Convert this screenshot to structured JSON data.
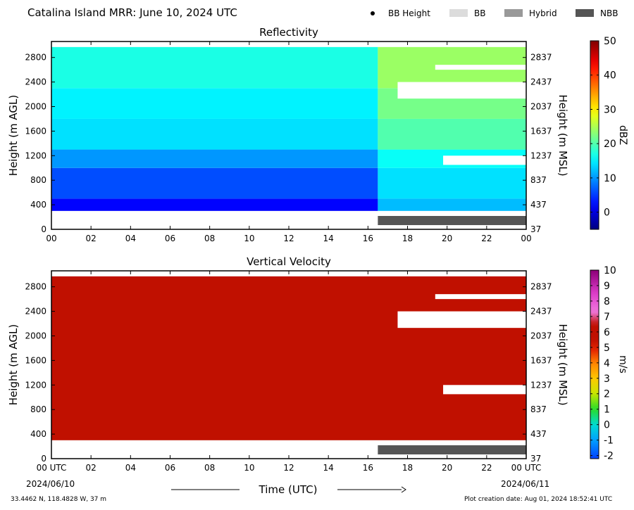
{
  "header": {
    "title": "Catalina Island MRR:  June 10, 2024 UTC"
  },
  "legend": [
    {
      "label": "BB Height",
      "kind": "dot",
      "color": "#000000"
    },
    {
      "label": "BB",
      "kind": "swatch",
      "color": "#dcdcdc"
    },
    {
      "label": "Hybrid",
      "kind": "swatch",
      "color": "#999999"
    },
    {
      "label": "NBB",
      "kind": "swatch",
      "color": "#555555"
    }
  ],
  "footer": {
    "location": "33.4462 N, 118.4828 W, 37 m",
    "created": "Plot creation date: Aug 01, 2024 18:52:41 UTC",
    "date_left": "2024/06/10",
    "date_right": "2024/06/11"
  },
  "chart_data": [
    {
      "type": "heatmap",
      "title": "Reflectivity",
      "xlabel": "",
      "ylabel": "Height (m AGL)",
      "ylabel_right": "Height (m MSL)",
      "x_ticks": [
        "00",
        "02",
        "04",
        "06",
        "08",
        "10",
        "12",
        "14",
        "16",
        "18",
        "20",
        "22",
        "00"
      ],
      "xlim": [
        0,
        24
      ],
      "y_ticks_left": [
        0,
        400,
        800,
        1200,
        1600,
        2000,
        2400,
        2800
      ],
      "y_ticks_right": [
        37,
        437,
        837,
        1237,
        1637,
        2037,
        2437,
        2837
      ],
      "ylim": [
        0,
        3060
      ],
      "colorbar": {
        "label": "dBZ",
        "range": [
          -5,
          50
        ],
        "ticks": [
          0,
          10,
          20,
          30,
          40,
          50
        ]
      },
      "data_top_m": 2970,
      "data_bottom_m": 300,
      "layers": [
        {
          "from_m": 300,
          "to_m": 500,
          "dbz_0_16": 2,
          "dbz_18_24": 12
        },
        {
          "from_m": 500,
          "to_m": 1000,
          "dbz_0_16": 6,
          "dbz_18_24": 14
        },
        {
          "from_m": 1000,
          "to_m": 1300,
          "dbz_0_16": 10,
          "dbz_18_24": 16
        },
        {
          "from_m": 1300,
          "to_m": 1800,
          "dbz_0_16": 14,
          "dbz_18_24": 20
        },
        {
          "from_m": 1800,
          "to_m": 2300,
          "dbz_0_16": 15,
          "dbz_18_24": 22
        },
        {
          "from_m": 2300,
          "to_m": 2970,
          "dbz_0_16": 17,
          "dbz_18_24": 24
        }
      ],
      "gaps": [
        {
          "from_h": 19.8,
          "to_h": 24,
          "from_m": 1050,
          "to_m": 1200
        },
        {
          "from_h": 17.5,
          "to_h": 24,
          "from_m": 2130,
          "to_m": 2400
        },
        {
          "from_h": 19.4,
          "to_h": 24,
          "from_m": 2600,
          "to_m": 2680
        }
      ],
      "nbb_period_h": [
        16.5,
        24
      ]
    },
    {
      "type": "heatmap",
      "title": "Vertical Velocity",
      "xlabel": "Time (UTC)",
      "ylabel": "Height (m AGL)",
      "ylabel_right": "Height (m MSL)",
      "x_ticks": [
        "00 UTC",
        "02",
        "04",
        "06",
        "08",
        "10",
        "12",
        "14",
        "16",
        "18",
        "20",
        "22",
        "00 UTC"
      ],
      "xlim": [
        0,
        24
      ],
      "y_ticks_left": [
        0,
        400,
        800,
        1200,
        1600,
        2000,
        2400,
        2800
      ],
      "y_ticks_right": [
        37,
        437,
        837,
        1237,
        1637,
        2037,
        2437,
        2837
      ],
      "ylim": [
        0,
        3060
      ],
      "colorbar": {
        "label": "m/s",
        "range": [
          -2.2,
          10
        ],
        "ticks": [
          -2,
          -1,
          0,
          1,
          2,
          3,
          4,
          5,
          6,
          7,
          8,
          9,
          10
        ]
      },
      "data_top_m": 2970,
      "data_bottom_m": 300,
      "fill_value_ms": 6,
      "fill_color": "#c01000",
      "gaps": [
        {
          "from_h": 19.8,
          "to_h": 24,
          "from_m": 1050,
          "to_m": 1200
        },
        {
          "from_h": 17.5,
          "to_h": 24,
          "from_m": 2130,
          "to_m": 2400
        },
        {
          "from_h": 19.4,
          "to_h": 24,
          "from_m": 2600,
          "to_m": 2680
        }
      ],
      "nbb_period_h": [
        16.5,
        24
      ]
    }
  ]
}
